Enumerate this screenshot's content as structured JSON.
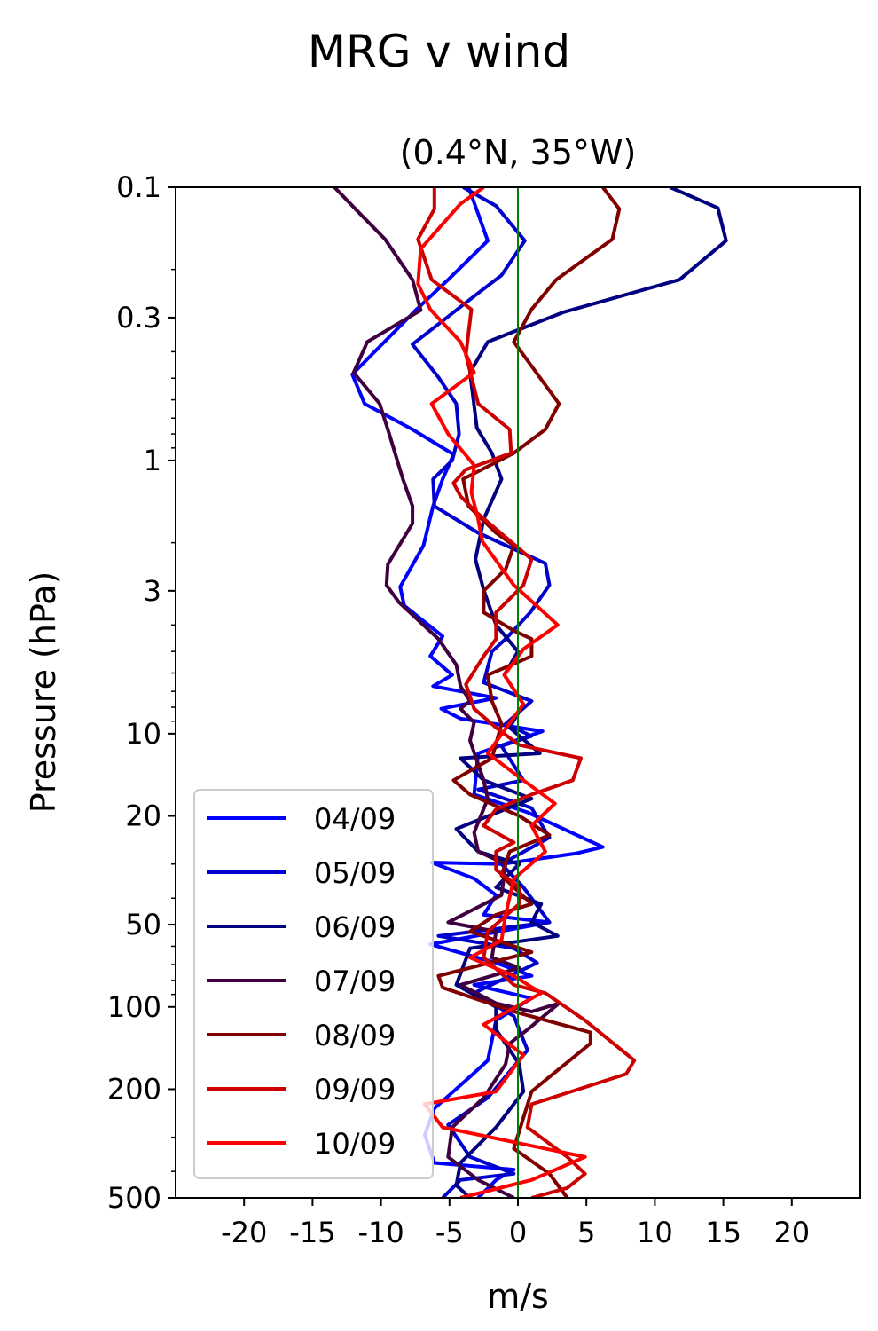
{
  "chart_data": {
    "type": "line",
    "title": "MRG v wind",
    "subtitle": "(0.4°N, 35°W)",
    "xlabel": "m/s",
    "ylabel": "Pressure (hPa)",
    "xlim": [
      -25,
      25
    ],
    "ylim": [
      500,
      0.1
    ],
    "yscale": "log",
    "x_ticks": [
      -20,
      -15,
      -10,
      -5,
      0,
      5,
      10,
      15,
      20
    ],
    "x_tick_labels": [
      "-20",
      "-15",
      "-10",
      "-5",
      "0",
      "5",
      "10",
      "15",
      "20"
    ],
    "y_ticks": [
      0.1,
      0.3,
      1,
      3,
      10,
      20,
      50,
      100,
      200,
      500
    ],
    "y_tick_labels": [
      "0.1",
      "0.3",
      "1",
      "3",
      "10",
      "20",
      "50",
      "100",
      "200",
      "500"
    ],
    "reference_line": {
      "x": 0,
      "color": "#008000"
    },
    "legend_position": "lower-left",
    "series": [
      {
        "name": "04/09",
        "color": "#0000ff",
        "points": [
          [
            -3.6,
            0.1
          ],
          [
            -2.2,
            0.157
          ],
          [
            -5.1,
            0.218
          ],
          [
            -7.4,
            0.28
          ],
          [
            -12.1,
            0.484
          ],
          [
            -11.2,
            0.62
          ],
          [
            -7.7,
            0.77
          ],
          [
            -4.7,
            0.95
          ],
          [
            -5.5,
            1.17
          ],
          [
            -6.2,
            1.47
          ],
          [
            -6.9,
            2.05
          ],
          [
            -8.6,
            2.9
          ],
          [
            -8.3,
            3.4
          ],
          [
            -5.5,
            4.4
          ],
          [
            -6.4,
            5.2
          ],
          [
            -4.8,
            6.1
          ],
          [
            -6.2,
            6.7
          ],
          [
            -1.6,
            7.4
          ],
          [
            -5.6,
            8.1
          ],
          [
            -4.2,
            8.8
          ],
          [
            1.8,
            9.8
          ],
          [
            -2.9,
            11.8
          ],
          [
            -3.2,
            16.7
          ],
          [
            0.7,
            19.4
          ],
          [
            6.2,
            26
          ],
          [
            4.3,
            27.4
          ],
          [
            -1.2,
            30
          ],
          [
            -6.3,
            29.6
          ],
          [
            -3.2,
            33.9
          ],
          [
            -1.6,
            39
          ],
          [
            -2.5,
            46
          ],
          [
            2.3,
            49
          ],
          [
            -6.4,
            59
          ],
          [
            -1.6,
            69
          ],
          [
            1.0,
            77
          ],
          [
            -3.2,
            83
          ],
          [
            1.0,
            93
          ],
          [
            -1.6,
            112
          ],
          [
            -2.2,
            157
          ],
          [
            -3.5,
            180
          ],
          [
            -6.1,
            235
          ],
          [
            -6.8,
            294
          ],
          [
            -6.1,
            372
          ],
          [
            -0.3,
            394
          ],
          [
            -1.6,
            430
          ],
          [
            -2.9,
            500
          ]
        ]
      },
      {
        "name": "05/09",
        "color": "#0000cc",
        "points": [
          [
            -4.0,
            0.1
          ],
          [
            -1.6,
            0.117
          ],
          [
            0.5,
            0.157
          ],
          [
            -1.2,
            0.21
          ],
          [
            -2.9,
            0.244
          ],
          [
            -7.7,
            0.376
          ],
          [
            -5.8,
            0.496
          ],
          [
            -4.5,
            0.62
          ],
          [
            -4.3,
            0.8
          ],
          [
            -4.8,
            1.0
          ],
          [
            -6.2,
            1.17
          ],
          [
            -6.1,
            1.47
          ],
          [
            -2.9,
            1.84
          ],
          [
            2.0,
            2.38
          ],
          [
            2.3,
            2.86
          ],
          [
            0.9,
            3.6
          ],
          [
            -0.9,
            4.5
          ],
          [
            -1.9,
            5.0
          ],
          [
            -2.5,
            6.5
          ],
          [
            1.0,
            7.6
          ],
          [
            -0.9,
            9.2
          ],
          [
            1.0,
            10.2
          ],
          [
            -1.2,
            11.1
          ],
          [
            0.4,
            14.8
          ],
          [
            -2.9,
            16
          ],
          [
            1.0,
            18.7
          ],
          [
            2.3,
            24
          ],
          [
            -1.2,
            30
          ],
          [
            0.4,
            36.5
          ],
          [
            2.3,
            49
          ],
          [
            -5.8,
            55
          ],
          [
            -0.3,
            61
          ],
          [
            1.4,
            69
          ],
          [
            -3.2,
            89
          ],
          [
            -0.3,
            108
          ],
          [
            0.7,
            144
          ],
          [
            -2.2,
            215
          ],
          [
            -5.1,
            270
          ],
          [
            -3.5,
            354
          ],
          [
            -0.3,
            408
          ],
          [
            -4.2,
            430
          ],
          [
            -5.5,
            500
          ]
        ]
      },
      {
        "name": "06/09",
        "color": "#000080",
        "points": [
          [
            11.1,
            0.1
          ],
          [
            14.6,
            0.119
          ],
          [
            15.2,
            0.157
          ],
          [
            11.8,
            0.218
          ],
          [
            3.3,
            0.287
          ],
          [
            -2.2,
            0.368
          ],
          [
            -3.5,
            0.476
          ],
          [
            -3.0,
            0.76
          ],
          [
            -1.9,
            0.94
          ],
          [
            -1.2,
            1.17
          ],
          [
            -2.5,
            1.64
          ],
          [
            -3.1,
            2.3
          ],
          [
            -2.5,
            2.98
          ],
          [
            -1.6,
            4.0
          ],
          [
            0,
            5.0
          ],
          [
            -1.0,
            6.1
          ],
          [
            0.4,
            7.8
          ],
          [
            -0.6,
            9.5
          ],
          [
            1.6,
            11.8
          ],
          [
            -4.2,
            12.3
          ],
          [
            -2.5,
            14.8
          ],
          [
            1.0,
            17.3
          ],
          [
            -4.5,
            22.3
          ],
          [
            -2.9,
            27
          ],
          [
            0.1,
            30
          ],
          [
            -1.6,
            36.5
          ],
          [
            1.7,
            42
          ],
          [
            1.0,
            49
          ],
          [
            2.9,
            55
          ],
          [
            -3.5,
            61
          ],
          [
            -4.5,
            83
          ],
          [
            -1.6,
            100
          ],
          [
            -1.6,
            121
          ],
          [
            0.1,
            162
          ],
          [
            0.4,
            204
          ],
          [
            -1.6,
            276
          ],
          [
            -4.2,
            372
          ],
          [
            -4.5,
            450
          ],
          [
            -3.5,
            500
          ]
        ]
      },
      {
        "name": "07/09",
        "color": "#400040",
        "points": [
          [
            -13.4,
            0.1
          ],
          [
            -11.6,
            0.124
          ],
          [
            -9.7,
            0.155
          ],
          [
            -7.7,
            0.218
          ],
          [
            -7.1,
            0.282
          ],
          [
            -11.0,
            0.368
          ],
          [
            -12.0,
            0.477
          ],
          [
            -10.1,
            0.62
          ],
          [
            -9.4,
            0.8
          ],
          [
            -8.4,
            1.17
          ],
          [
            -7.7,
            1.47
          ],
          [
            -7.7,
            1.7
          ],
          [
            -9.5,
            2.4
          ],
          [
            -9.6,
            2.86
          ],
          [
            -8.7,
            3.3
          ],
          [
            -5.8,
            4.5
          ],
          [
            -4.5,
            5.6
          ],
          [
            -4.2,
            6.7
          ],
          [
            -3.5,
            7.6
          ],
          [
            -4.2,
            8.1
          ],
          [
            -3.2,
            9.1
          ],
          [
            -3.5,
            10.6
          ],
          [
            -2.5,
            14.8
          ],
          [
            -2.2,
            17.3
          ],
          [
            -3.2,
            23
          ],
          [
            -2.9,
            27
          ],
          [
            -0.9,
            30
          ],
          [
            -1.2,
            39
          ],
          [
            -5.1,
            49
          ],
          [
            -1.6,
            53
          ],
          [
            -1.9,
            66
          ],
          [
            0.1,
            72
          ],
          [
            -4.2,
            83
          ],
          [
            -1.6,
            97
          ],
          [
            1.0,
            104
          ],
          [
            3.0,
            97
          ],
          [
            0.7,
            121
          ],
          [
            -0.6,
            136
          ],
          [
            -0.9,
            162
          ],
          [
            -2.5,
            215
          ],
          [
            -4.8,
            276
          ],
          [
            -5.1,
            354
          ],
          [
            -2.9,
            430
          ],
          [
            -0.3,
            500
          ]
        ]
      },
      {
        "name": "08/09",
        "color": "#800000",
        "points": [
          [
            6.2,
            0.1
          ],
          [
            7.4,
            0.12
          ],
          [
            6.9,
            0.155
          ],
          [
            2.8,
            0.218
          ],
          [
            1.0,
            0.28
          ],
          [
            -0.3,
            0.368
          ],
          [
            3.0,
            0.62
          ],
          [
            2.0,
            0.77
          ],
          [
            -0.3,
            0.94
          ],
          [
            -4.0,
            1.17
          ],
          [
            -3.6,
            1.47
          ],
          [
            -1.6,
            1.84
          ],
          [
            -0.3,
            2.05
          ],
          [
            -0.9,
            2.5
          ],
          [
            -2.5,
            3.0
          ],
          [
            -2.5,
            3.6
          ],
          [
            -0.3,
            4.2
          ],
          [
            1.0,
            4.5
          ],
          [
            1.0,
            5.2
          ],
          [
            -2.2,
            6.1
          ],
          [
            -1.9,
            7.6
          ],
          [
            -1.2,
            9.2
          ],
          [
            -1.9,
            12.3
          ],
          [
            -4.7,
            14.8
          ],
          [
            -3.5,
            16.7
          ],
          [
            0.1,
            20
          ],
          [
            2.3,
            23.5
          ],
          [
            -0.6,
            27
          ],
          [
            -1.2,
            33
          ],
          [
            -0.3,
            36.5
          ],
          [
            1.0,
            42
          ],
          [
            -1.6,
            46
          ],
          [
            -3.5,
            53
          ],
          [
            1.0,
            63
          ],
          [
            -5.8,
            77
          ],
          [
            -5.5,
            85
          ],
          [
            -0.3,
            104
          ],
          [
            5.3,
            124
          ],
          [
            5.3,
            136
          ],
          [
            1.0,
            204
          ],
          [
            -0.3,
            330
          ],
          [
            2.3,
            408
          ],
          [
            3.6,
            500
          ]
        ]
      },
      {
        "name": "09/09",
        "color": "#cc0000",
        "points": [
          [
            -6.1,
            0.1
          ],
          [
            -6.1,
            0.12
          ],
          [
            -7.3,
            0.155
          ],
          [
            -6.3,
            0.218
          ],
          [
            -3.4,
            0.28
          ],
          [
            -3.8,
            0.41
          ],
          [
            -2.9,
            0.62
          ],
          [
            -0.6,
            0.77
          ],
          [
            -0.5,
            0.94
          ],
          [
            -3.8,
            1.08
          ],
          [
            -4.7,
            1.21
          ],
          [
            -4.2,
            1.35
          ],
          [
            -2.9,
            1.57
          ],
          [
            1.0,
            2.3
          ],
          [
            0.4,
            2.86
          ],
          [
            -1.6,
            3.6
          ],
          [
            -1.6,
            4.5
          ],
          [
            -2.5,
            5.2
          ],
          [
            -3.8,
            6.6
          ],
          [
            -3.2,
            8.1
          ],
          [
            -1.6,
            9.5
          ],
          [
            0.1,
            11
          ],
          [
            4.6,
            12.3
          ],
          [
            4.0,
            14.8
          ],
          [
            1.0,
            16.7
          ],
          [
            -1.6,
            18.9
          ],
          [
            -2.5,
            21.7
          ],
          [
            -0.3,
            25
          ],
          [
            -1.6,
            27
          ],
          [
            -1.6,
            31.5
          ],
          [
            0.1,
            36.5
          ],
          [
            0.1,
            42
          ],
          [
            -2.2,
            53
          ],
          [
            -2.5,
            66
          ],
          [
            -0.3,
            83
          ],
          [
            2.0,
            89
          ],
          [
            4.9,
            112
          ],
          [
            8.5,
            157
          ],
          [
            7.9,
            176
          ],
          [
            1.0,
            227
          ],
          [
            0.7,
            276
          ],
          [
            3.6,
            354
          ],
          [
            4.9,
            408
          ],
          [
            3.6,
            460
          ],
          [
            1.0,
            500
          ]
        ]
      },
      {
        "name": "10/09",
        "color": "#ff0000",
        "points": [
          [
            -2.5,
            0.1
          ],
          [
            -4.2,
            0.115
          ],
          [
            -7.1,
            0.168
          ],
          [
            -7.3,
            0.226
          ],
          [
            -6.4,
            0.28
          ],
          [
            -4.2,
            0.368
          ],
          [
            -3.2,
            0.476
          ],
          [
            -6.3,
            0.62
          ],
          [
            -5.1,
            0.8
          ],
          [
            -3.2,
            1.04
          ],
          [
            -3.4,
            1.31
          ],
          [
            -2.9,
            1.64
          ],
          [
            -2.6,
            1.98
          ],
          [
            -0.3,
            2.86
          ],
          [
            2.9,
            4.0
          ],
          [
            0.4,
            4.9
          ],
          [
            -1.0,
            6.1
          ],
          [
            0.4,
            7.8
          ],
          [
            -2.2,
            11.8
          ],
          [
            0.4,
            14.8
          ],
          [
            2.7,
            18.0
          ],
          [
            1.0,
            21.7
          ],
          [
            2.0,
            27
          ],
          [
            -0.3,
            34
          ],
          [
            -0.9,
            46
          ],
          [
            -1.2,
            57
          ],
          [
            -3.5,
            66
          ],
          [
            -0.3,
            77
          ],
          [
            1.7,
            89
          ],
          [
            -2.5,
            116
          ],
          [
            0.4,
            150
          ],
          [
            -1.6,
            204
          ],
          [
            -6.8,
            227
          ],
          [
            -5.5,
            276
          ],
          [
            4.9,
            354
          ],
          [
            1.0,
            430
          ],
          [
            -4.2,
            500
          ]
        ]
      }
    ]
  }
}
